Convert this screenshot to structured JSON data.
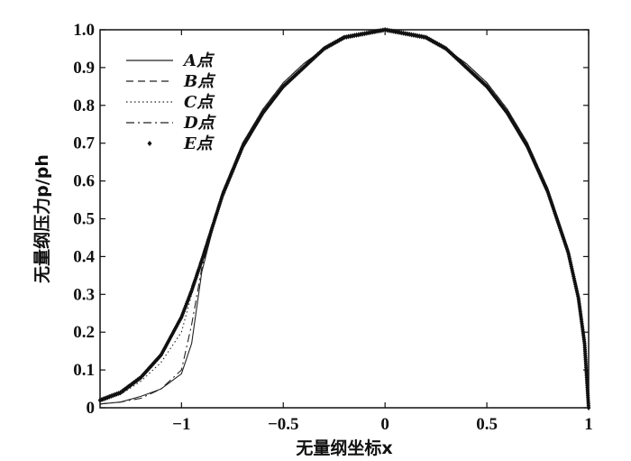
{
  "chart_data": {
    "type": "line",
    "title": "",
    "xlabel": "无量纲坐标x",
    "ylabel": "无量纲压力p/ph",
    "xlim": [
      -1.4,
      1.0
    ],
    "ylim": [
      0,
      1.0
    ],
    "xticks": [
      -1,
      -0.5,
      0,
      0.5,
      1
    ],
    "xtick_labels": [
      "−1",
      "−0.5",
      "0",
      "0.5",
      "1"
    ],
    "yticks": [
      0,
      0.1,
      0.2,
      0.3,
      0.4,
      0.5,
      0.6,
      0.7,
      0.8,
      0.9,
      1.0
    ],
    "ytick_labels": [
      "0",
      "0.1",
      "0.2",
      "0.3",
      "0.4",
      "0.5",
      "0.6",
      "0.7",
      "0.8",
      "0.9",
      "1.0"
    ],
    "grid": false,
    "legend_position": "top-left",
    "series": [
      {
        "name": "A点",
        "style": "solid",
        "x": [
          -1.4,
          -1.3,
          -1.2,
          -1.1,
          -1.0,
          -0.95,
          -0.9,
          -0.8,
          -0.7,
          -0.6,
          -0.5,
          -0.4,
          -0.3,
          -0.2,
          -0.1,
          0,
          0.1,
          0.2,
          0.3,
          0.4,
          0.5,
          0.6,
          0.7,
          0.8,
          0.9,
          0.95,
          0.98,
          1.0
        ],
        "y": [
          0.01,
          0.015,
          0.03,
          0.05,
          0.09,
          0.17,
          0.36,
          0.57,
          0.7,
          0.79,
          0.86,
          0.91,
          0.95,
          0.98,
          0.99,
          1.0,
          0.99,
          0.98,
          0.95,
          0.91,
          0.86,
          0.79,
          0.7,
          0.58,
          0.42,
          0.3,
          0.18,
          0.0
        ]
      },
      {
        "name": "B点",
        "style": "dashed",
        "x": [
          -1.4,
          -1.3,
          -1.2,
          -1.1,
          -1.0,
          -0.95,
          -0.9,
          -0.8,
          -0.7,
          -0.6,
          -0.5,
          -0.4,
          -0.3,
          -0.2,
          -0.1,
          0,
          0.1,
          0.2,
          0.3,
          0.4,
          0.5,
          0.6,
          0.7,
          0.8,
          0.9,
          0.95,
          0.98,
          1.0
        ],
        "y": [
          0.02,
          0.04,
          0.08,
          0.14,
          0.24,
          0.32,
          0.4,
          0.57,
          0.69,
          0.78,
          0.85,
          0.9,
          0.95,
          0.98,
          0.99,
          1.0,
          0.99,
          0.98,
          0.95,
          0.9,
          0.85,
          0.78,
          0.69,
          0.57,
          0.41,
          0.29,
          0.17,
          0.0
        ]
      },
      {
        "name": "C点",
        "style": "dotted",
        "x": [
          -1.4,
          -1.3,
          -1.2,
          -1.1,
          -1.0,
          -0.95,
          -0.9,
          -0.8,
          -0.7,
          -0.6,
          -0.5,
          -0.4,
          -0.3,
          -0.2,
          -0.1,
          0,
          0.1,
          0.2,
          0.3,
          0.4,
          0.5,
          0.6,
          0.7,
          0.8,
          0.9,
          0.95,
          0.98,
          1.0
        ],
        "y": [
          0.02,
          0.035,
          0.07,
          0.12,
          0.2,
          0.3,
          0.39,
          0.56,
          0.69,
          0.78,
          0.85,
          0.9,
          0.95,
          0.98,
          0.99,
          1.0,
          0.99,
          0.98,
          0.95,
          0.9,
          0.85,
          0.78,
          0.69,
          0.57,
          0.41,
          0.29,
          0.17,
          0.0
        ]
      },
      {
        "name": "D点",
        "style": "dashdot",
        "x": [
          -1.4,
          -1.3,
          -1.2,
          -1.1,
          -1.0,
          -0.95,
          -0.9,
          -0.8,
          -0.7,
          -0.6,
          -0.5,
          -0.4,
          -0.3,
          -0.2,
          -0.1,
          0,
          0.1,
          0.2,
          0.3,
          0.4,
          0.5,
          0.6,
          0.7,
          0.8,
          0.9,
          0.95,
          0.98,
          1.0
        ],
        "y": [
          0.01,
          0.015,
          0.025,
          0.05,
          0.1,
          0.22,
          0.37,
          0.57,
          0.7,
          0.79,
          0.86,
          0.91,
          0.95,
          0.98,
          0.99,
          1.0,
          0.99,
          0.98,
          0.95,
          0.91,
          0.86,
          0.79,
          0.7,
          0.58,
          0.42,
          0.3,
          0.18,
          0.0
        ]
      },
      {
        "name": "E点",
        "style": "markers",
        "x": [
          -1.4,
          -1.3,
          -1.2,
          -1.1,
          -1.0,
          -0.95,
          -0.9,
          -0.8,
          -0.7,
          -0.6,
          -0.5,
          -0.4,
          -0.3,
          -0.2,
          -0.1,
          0,
          0.1,
          0.2,
          0.3,
          0.4,
          0.5,
          0.6,
          0.7,
          0.8,
          0.9,
          0.95,
          0.98,
          1.0
        ],
        "y": [
          0.02,
          0.04,
          0.08,
          0.14,
          0.24,
          0.31,
          0.39,
          0.56,
          0.69,
          0.78,
          0.85,
          0.9,
          0.95,
          0.98,
          0.99,
          1.0,
          0.99,
          0.98,
          0.95,
          0.9,
          0.85,
          0.78,
          0.69,
          0.57,
          0.41,
          0.29,
          0.17,
          0.0
        ]
      }
    ]
  }
}
